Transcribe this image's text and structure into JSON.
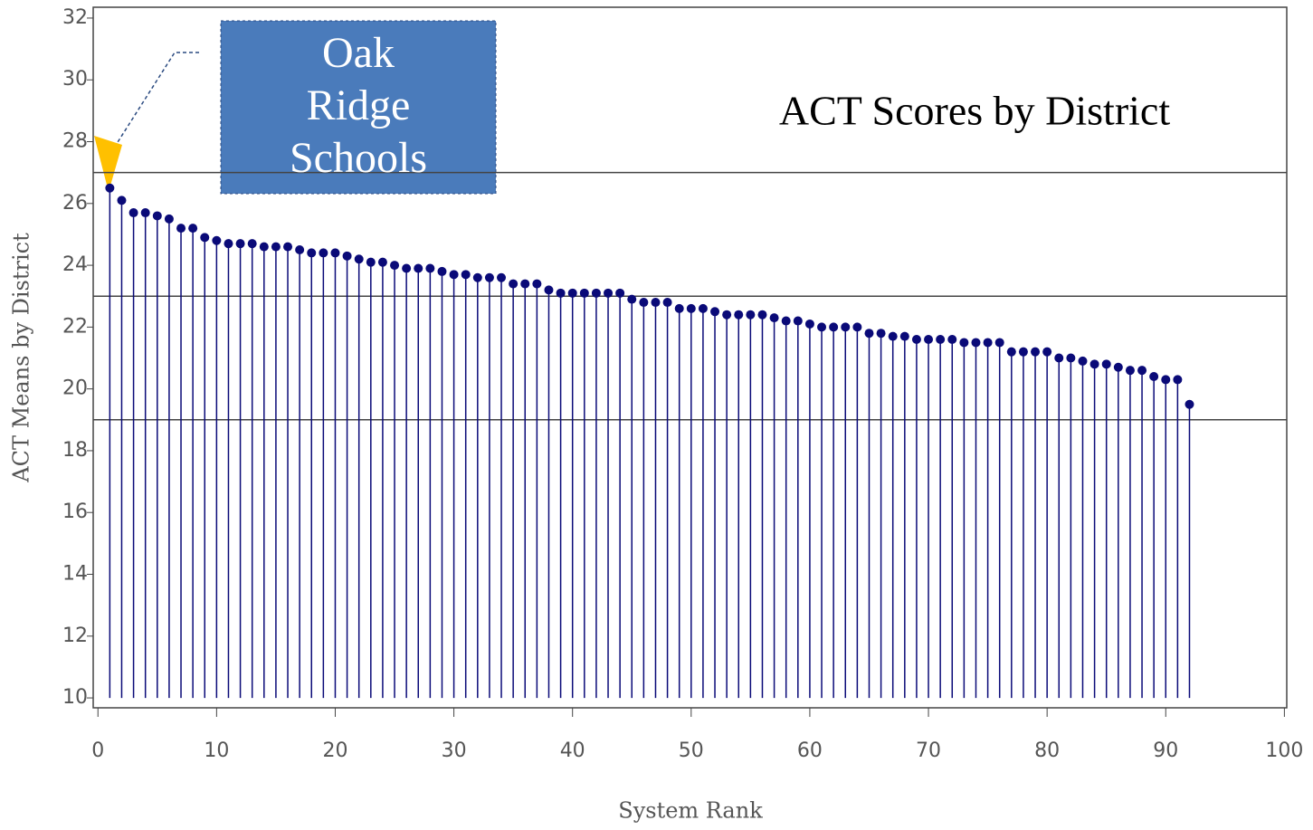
{
  "chart_data": {
    "type": "stem",
    "title": "ACT Scores by District",
    "x_label": "System Rank",
    "y_label": "ACT Means by District",
    "annotation": [
      "Oak",
      "Ridge",
      "Schools"
    ],
    "color": "#0a0a78",
    "reference_lines": [
      27,
      23,
      19
    ],
    "xlim": [
      -0.4,
      100.2
    ],
    "ylim": [
      9.68,
      32.35
    ],
    "xticks": [
      0,
      10,
      20,
      30,
      40,
      50,
      60,
      70,
      80,
      90,
      100
    ],
    "yticks": [
      10,
      12,
      14,
      16,
      18,
      20,
      22,
      24,
      26,
      28,
      30,
      32
    ],
    "x": [
      1,
      2,
      3,
      4,
      5,
      6,
      7,
      8,
      9,
      10,
      11,
      12,
      13,
      14,
      15,
      16,
      17,
      18,
      19,
      20,
      21,
      22,
      23,
      24,
      25,
      26,
      27,
      28,
      29,
      30,
      31,
      32,
      33,
      34,
      35,
      36,
      37,
      38,
      39,
      40,
      41,
      42,
      43,
      44,
      45,
      46,
      47,
      48,
      49,
      50,
      51,
      52,
      53,
      54,
      55,
      56,
      57,
      58,
      59,
      60,
      61,
      62,
      63,
      64,
      65,
      66,
      67,
      68,
      69,
      70,
      71,
      72,
      73,
      74,
      75,
      76,
      77,
      78,
      79,
      80,
      81,
      82,
      83,
      84,
      85,
      86,
      87,
      88,
      89,
      90,
      91,
      92
    ],
    "values": [
      26.5,
      26.1,
      25.7,
      25.7,
      25.6,
      25.5,
      25.2,
      25.2,
      24.9,
      24.8,
      24.7,
      24.7,
      24.7,
      24.6,
      24.6,
      24.6,
      24.5,
      24.4,
      24.4,
      24.4,
      24.3,
      24.2,
      24.1,
      24.1,
      24.0,
      23.9,
      23.9,
      23.9,
      23.8,
      23.7,
      23.7,
      23.6,
      23.6,
      23.6,
      23.4,
      23.4,
      23.4,
      23.2,
      23.1,
      23.1,
      23.1,
      23.1,
      23.1,
      23.1,
      22.9,
      22.8,
      22.8,
      22.8,
      22.6,
      22.6,
      22.6,
      22.5,
      22.4,
      22.4,
      22.4,
      22.4,
      22.3,
      22.2,
      22.2,
      22.1,
      22.0,
      22.0,
      22.0,
      22.0,
      21.8,
      21.8,
      21.7,
      21.7,
      21.6,
      21.6,
      21.6,
      21.6,
      21.5,
      21.5,
      21.5,
      21.5,
      21.2,
      21.2,
      21.2,
      21.2,
      21.0,
      21.0,
      20.9,
      20.8,
      20.8,
      20.7,
      20.6,
      20.6,
      20.4,
      20.3,
      20.3,
      19.5
    ]
  }
}
